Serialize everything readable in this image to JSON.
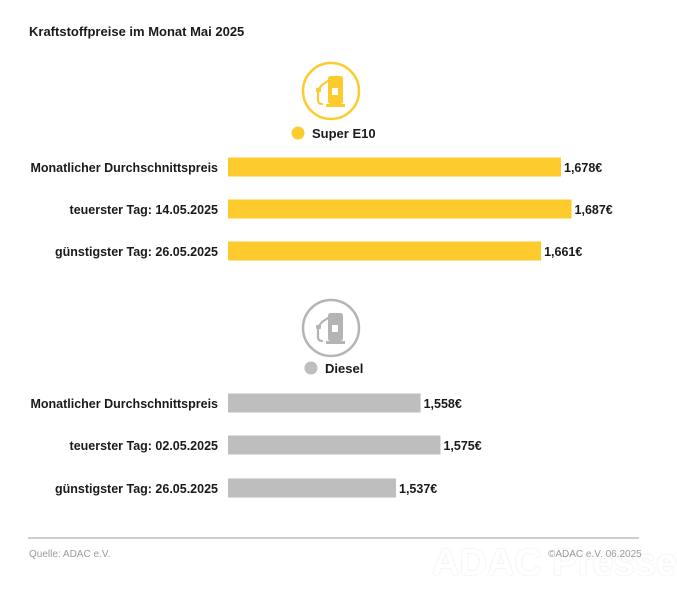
{
  "colors": {
    "super": "#FDCB2E",
    "diesel": "#BEBEBE",
    "icon_super": "#FDCB2E",
    "icon_diesel": "#B4B4B4"
  },
  "icons": [
    "fuel-pump-icon-super",
    "fuel-pump-icon-diesel"
  ],
  "chart_data": {
    "type": "bar",
    "title": "Kraftstoffpreise im Monat Mai 2025",
    "xlim": [
      0,
      1.7
    ],
    "unit": "€",
    "groups": [
      {
        "name": "Super E10",
        "color": "#FDCB2E",
        "categories": [
          "Monatlicher Durchschnittspreis",
          "teuerster Tag: 14.05.2025",
          "günstigster Tag: 26.05.2025"
        ],
        "values": [
          1.678,
          1.687,
          1.661
        ],
        "labels": [
          "1,678€",
          "1,687€",
          "1,661€"
        ]
      },
      {
        "name": "Diesel",
        "color": "#BEBEBE",
        "categories": [
          "Monatlicher Durchschnittspreis",
          "teuerster Tag: 02.05.2025",
          "günstigster Tag: 26.05.2025"
        ],
        "values": [
          1.558,
          1.575,
          1.537
        ],
        "labels": [
          "1,558€",
          "1,575€",
          "1,537€"
        ]
      }
    ]
  },
  "footer": {
    "source": "Quelle: ADAC e.V.",
    "copyright": "©ADAC e.V. 06.2025",
    "watermark": "ADAC Presse"
  }
}
